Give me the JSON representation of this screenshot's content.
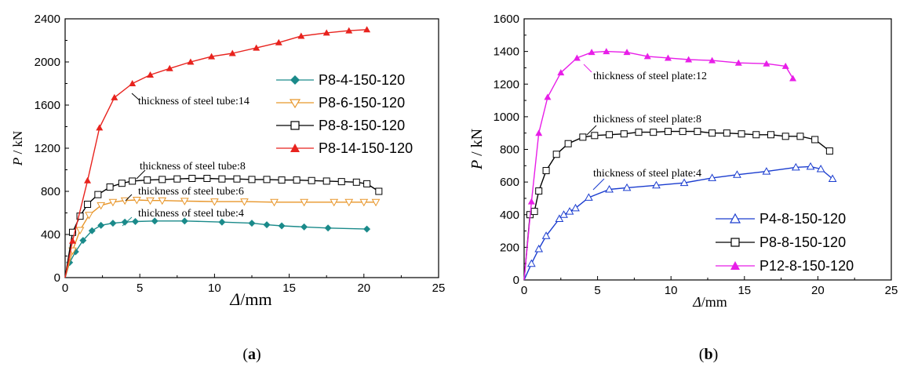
{
  "chart_data": [
    {
      "type": "line",
      "panel_label": "(a)",
      "panel_letter": "a",
      "xlabel_symbol": "Δ",
      "xlabel_unit": "/mm",
      "ylabel_symbol": "P",
      "ylabel_unit": " / kN",
      "xlim": [
        0,
        25
      ],
      "ylim": [
        0,
        2400
      ],
      "xticks": [
        0,
        5,
        10,
        15,
        20,
        25
      ],
      "yticks": [
        0,
        400,
        800,
        1200,
        1600,
        2000,
        2400
      ],
      "grid": false,
      "legend_position": "right",
      "series": [
        {
          "name": "P8-4-150-120",
          "color": "#1a8a8a",
          "marker": "diamond-filled",
          "x": [
            0,
            0.3,
            0.7,
            1.2,
            1.8,
            2.4,
            3.2,
            4.0,
            4.7,
            6.0,
            8.0,
            10.5,
            12.5,
            13.5,
            14.5,
            16.0,
            17.6,
            20.2
          ],
          "y": [
            0,
            140,
            240,
            345,
            435,
            485,
            505,
            515,
            520,
            525,
            525,
            515,
            505,
            490,
            480,
            470,
            460,
            450
          ]
        },
        {
          "name": "P8-6-150-120",
          "color": "#e8962a",
          "marker": "triangle-down-open",
          "x": [
            0,
            0.5,
            1.0,
            1.6,
            2.4,
            3.2,
            4.0,
            4.8,
            5.7,
            6.5,
            8.0,
            10.0,
            12.0,
            14.0,
            16.0,
            18.0,
            19.0,
            20.0,
            20.8
          ],
          "y": [
            0,
            250,
            440,
            580,
            670,
            700,
            715,
            720,
            715,
            715,
            710,
            705,
            705,
            700,
            700,
            700,
            700,
            700,
            700
          ]
        },
        {
          "name": "P8-8-150-120",
          "color": "#000000",
          "marker": "square-open",
          "x": [
            0,
            0.5,
            1.0,
            1.5,
            2.2,
            3.0,
            3.8,
            4.5,
            5.5,
            6.5,
            7.5,
            8.5,
            9.5,
            10.5,
            11.5,
            12.5,
            13.5,
            14.5,
            15.5,
            16.5,
            17.5,
            18.5,
            19.5,
            20.2,
            21.0
          ],
          "y": [
            0,
            420,
            570,
            680,
            770,
            840,
            875,
            895,
            905,
            910,
            915,
            920,
            920,
            915,
            915,
            910,
            910,
            905,
            905,
            900,
            895,
            890,
            885,
            870,
            800
          ]
        },
        {
          "name": "P8-14-150-120",
          "color": "#e8231e",
          "marker": "triangle-up-filled",
          "x": [
            0,
            0.5,
            1.5,
            2.3,
            3.3,
            4.5,
            5.7,
            7.0,
            8.4,
            9.8,
            11.2,
            12.8,
            14.3,
            15.8,
            17.5,
            19.0,
            20.2
          ],
          "y": [
            0,
            340,
            900,
            1390,
            1670,
            1800,
            1880,
            1940,
            2000,
            2050,
            2080,
            2130,
            2180,
            2240,
            2270,
            2290,
            2300
          ]
        }
      ],
      "annotations": [
        "thickness of steel tube:14",
        "thickness of steel tube:8",
        "thickness of steel tube:6",
        "thickness of steel tube:4"
      ]
    },
    {
      "type": "line",
      "panel_label": "(b)",
      "panel_letter": "b",
      "xlabel_symbol": "Δ",
      "xlabel_unit": "/mm",
      "ylabel_symbol": "P",
      "ylabel_unit": " / kN",
      "xlim": [
        0,
        25
      ],
      "ylim": [
        0,
        1600
      ],
      "xticks": [
        0,
        5,
        10,
        15,
        20,
        25
      ],
      "yticks": [
        0,
        200,
        400,
        600,
        800,
        1000,
        1200,
        1400,
        1600
      ],
      "grid": false,
      "legend_position": "bottom-right",
      "series": [
        {
          "name": "P4-8-150-120",
          "color": "#1a3ccf",
          "marker": "triangle-up-open",
          "x": [
            0,
            0.5,
            1.0,
            1.5,
            2.4,
            2.7,
            3.1,
            3.5,
            4.4,
            5.8,
            7.0,
            9.0,
            10.9,
            12.8,
            14.5,
            16.5,
            18.5,
            19.5,
            20.2,
            21.0
          ],
          "y": [
            0,
            100,
            190,
            270,
            375,
            400,
            420,
            440,
            505,
            555,
            565,
            580,
            595,
            625,
            645,
            665,
            690,
            695,
            680,
            620
          ]
        },
        {
          "name": "P8-8-150-120",
          "color": "#000000",
          "marker": "square-open",
          "x": [
            0,
            0.4,
            0.7,
            1.0,
            1.5,
            2.2,
            3.0,
            4.0,
            4.8,
            5.8,
            6.8,
            7.8,
            8.8,
            9.8,
            10.8,
            11.8,
            12.8,
            13.8,
            14.8,
            15.8,
            16.8,
            17.8,
            18.8,
            19.8,
            20.8
          ],
          "y": [
            0,
            400,
            420,
            545,
            670,
            770,
            835,
            875,
            885,
            890,
            895,
            905,
            905,
            910,
            910,
            910,
            900,
            900,
            895,
            890,
            890,
            880,
            880,
            860,
            790
          ]
        },
        {
          "name": "P12-8-150-120",
          "color": "#e81ee8",
          "marker": "triangle-up-filled",
          "x": [
            0,
            0.5,
            1.0,
            1.6,
            2.5,
            3.6,
            4.6,
            5.6,
            7.0,
            8.4,
            9.8,
            11.2,
            12.8,
            14.6,
            16.5,
            17.8,
            18.3
          ],
          "y": [
            0,
            480,
            900,
            1120,
            1270,
            1360,
            1395,
            1400,
            1395,
            1370,
            1360,
            1350,
            1345,
            1330,
            1325,
            1310,
            1235
          ]
        }
      ],
      "annotations": [
        "thickness of steel plate:12",
        "thickness of steel plate:8",
        "thickness of steel plate:4"
      ]
    }
  ]
}
